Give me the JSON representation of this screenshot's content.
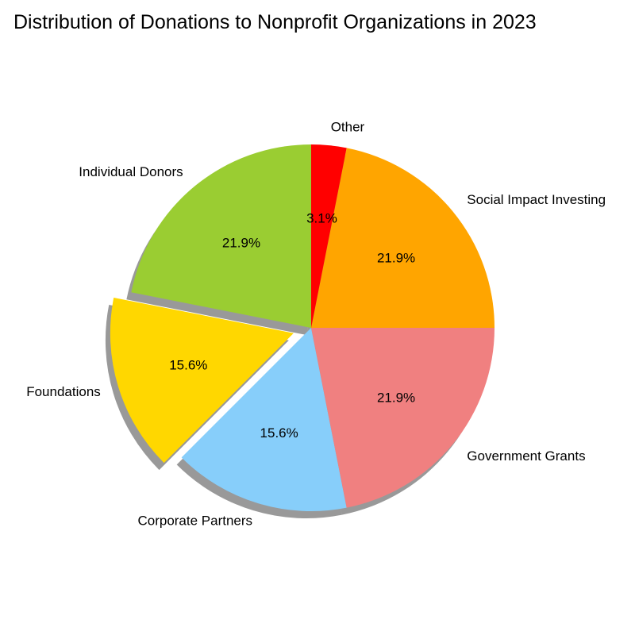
{
  "chart_data": {
    "type": "pie",
    "title": "Distribution of Donations to Nonprofit Organizations in 2023",
    "slices": [
      {
        "label": "Individual Donors",
        "value": 21.9,
        "pct_label": "21.9%",
        "color": "#9ACD32",
        "exploded": false
      },
      {
        "label": "Foundations",
        "value": 15.6,
        "pct_label": "15.6%",
        "color": "#FFD700",
        "exploded": true
      },
      {
        "label": "Corporate Partners",
        "value": 15.6,
        "pct_label": "15.6%",
        "color": "#87CEFA",
        "exploded": false
      },
      {
        "label": "Government Grants",
        "value": 21.9,
        "pct_label": "21.9%",
        "color": "#F08080",
        "exploded": false
      },
      {
        "label": "Social Impact Investing",
        "value": 21.9,
        "pct_label": "21.9%",
        "color": "#FFA500",
        "exploded": false
      },
      {
        "label": "Other",
        "value": 3.1,
        "pct_label": "3.1%",
        "color": "#FF0000",
        "exploded": false
      }
    ],
    "start_angle": 90,
    "direction": "counterclockwise",
    "shadow": true
  }
}
